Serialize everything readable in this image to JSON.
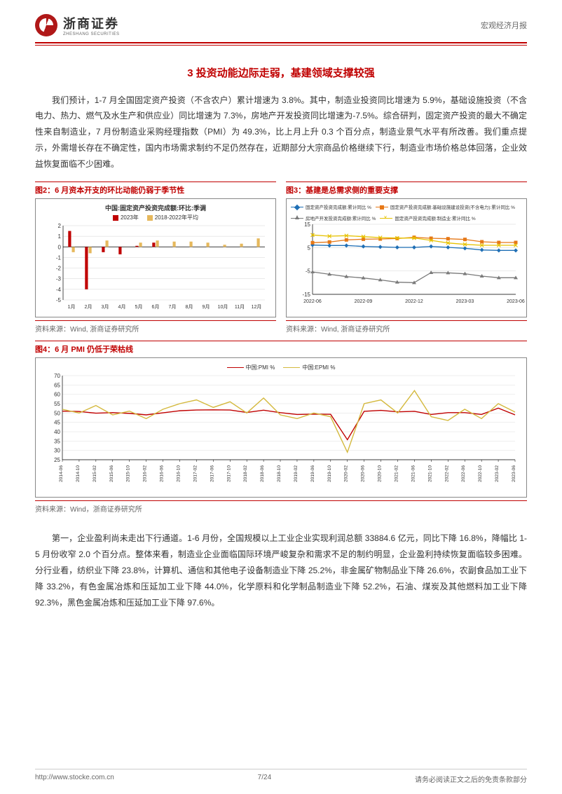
{
  "header": {
    "logo_cn": "浙商证券",
    "logo_en": "ZHESHANG SECURITIES",
    "doc_type": "宏观经济月报"
  },
  "section_title": "3 投资动能边际走弱，基建领域支撑较强",
  "para1": "我们预计，1-7 月全国固定资产投资（不含农户）累计增速为 3.8%。其中，制造业投资同比增速为 5.9%，基础设施投资（不含电力、热力、燃气及水生产和供应业）同比增速为 7.3%，房地产开发投资同比增速为-7.5%。综合研判，固定资产投资的最大不确定性来自制造业，7 月份制造业采购经理指数（PMI）为 49.3%，比上月上升 0.3 个百分点，制造业景气水平有所改善。我们重点提示，外需增长存在不确定性，国内市场需求制约不足仍然存在，近期部分大宗商品价格继续下行，制造业市场价格总体回落，企业效益恢复面临不少困难。",
  "fig2": {
    "title": "图2：6 月资本开支的环比动能仍弱于季节性",
    "inner_title": "中国:固定资产投资完成额:环比:季调",
    "source": "资料来源：Wind, 浙商证券研究所",
    "type": "bar",
    "categories": [
      "1月",
      "2月",
      "3月",
      "4月",
      "5月",
      "6月",
      "7月",
      "8月",
      "9月",
      "10月",
      "11月",
      "12月"
    ],
    "series": [
      {
        "name": "2023年",
        "color": "#c00000",
        "values": [
          1.5,
          -4.0,
          -0.5,
          -0.7,
          0.1,
          0.4,
          null,
          null,
          null,
          null,
          null,
          null
        ]
      },
      {
        "name": "2018-2022年平均",
        "color": "#e6b85c",
        "values": [
          -0.5,
          -0.6,
          0.6,
          0.0,
          0.4,
          0.6,
          0.5,
          0.5,
          0.4,
          0.2,
          0.3,
          0.8
        ]
      }
    ],
    "ylim": [
      -5,
      2
    ],
    "ytick_step": 1,
    "bar_width": 0.35,
    "grid_color": "#999999"
  },
  "fig3": {
    "title": "图3：基建是总需求侧的重要支撑",
    "source": "资料来源：Wind, 浙商证券研究所",
    "type": "line",
    "x_labels": [
      "2022-06",
      "2022-09",
      "2022-12",
      "2023-03",
      "2023-06"
    ],
    "series": [
      {
        "name": "固定资产投资完成额:累计同比 %",
        "color": "#1f6fb5",
        "marker": "diamond",
        "values": [
          6.1,
          5.9,
          5.9,
          5.5,
          5.3,
          5.1,
          5.1,
          5.5,
          5.1,
          4.7,
          4.0,
          3.8,
          3.8
        ]
      },
      {
        "name": "固定资产投资完成额:基础设施建设投资(不含电力):累计同比 %",
        "color": "#e67817",
        "marker": "square",
        "values": [
          7.1,
          7.4,
          8.3,
          8.6,
          8.7,
          8.9,
          9.4,
          9.0,
          8.8,
          8.5,
          7.5,
          7.2,
          7.2
        ]
      },
      {
        "name": "房地产开发投资完成额:累计同比 %",
        "color": "#7a7a7a",
        "marker": "triangle",
        "values": [
          -5.4,
          -6.4,
          -7.4,
          -8.0,
          -8.8,
          -9.8,
          -10.0,
          -5.7,
          -5.8,
          -6.2,
          -7.2,
          -7.9,
          -7.9
        ]
      },
      {
        "name": "固定资产投资完成额:制造业:累计同比 %",
        "color": "#e6c200",
        "marker": "x",
        "values": [
          10.4,
          9.9,
          10.1,
          9.7,
          9.3,
          9.1,
          9.1,
          8.1,
          7.0,
          6.4,
          6.0,
          6.0,
          6.0
        ]
      }
    ],
    "ylim": [
      -15,
      15
    ],
    "yticks": [
      -15,
      -5,
      5,
      15
    ]
  },
  "fig4": {
    "title": "图4：6 月 PMI 仍低于荣枯线",
    "source": "资料来源：Wind，浙商证券研究所",
    "type": "line",
    "x_labels": [
      "2014-06",
      "2014-10",
      "2015-02",
      "2015-06",
      "2015-10",
      "2016-02",
      "2016-06",
      "2016-10",
      "2017-02",
      "2017-06",
      "2017-10",
      "2018-02",
      "2018-06",
      "2018-10",
      "2019-02",
      "2019-06",
      "2019-10",
      "2020-02",
      "2020-06",
      "2020-10",
      "2021-02",
      "2021-06",
      "2021-10",
      "2022-02",
      "2022-06",
      "2022-10",
      "2023-02",
      "2023-06"
    ],
    "series": [
      {
        "name": "中国:PMI %",
        "color": "#c00000",
        "marker": "none",
        "values": [
          51,
          50.8,
          49.9,
          50.2,
          49.8,
          49,
          50.1,
          51.2,
          51.6,
          51.7,
          51.6,
          50.3,
          51.5,
          50.2,
          49.2,
          49.4,
          49.3,
          35.7,
          50.9,
          51.4,
          50.6,
          50.9,
          49.2,
          50.2,
          50.2,
          49.2,
          52.6,
          49
        ]
      },
      {
        "name": "中国:EPMI %",
        "color": "#d4b93e",
        "marker": "none",
        "values": [
          52,
          50,
          54,
          49,
          51,
          47,
          52,
          55,
          57,
          53,
          56,
          50,
          58,
          49,
          47,
          50,
          48,
          29,
          55,
          57,
          50,
          62,
          48,
          46,
          52,
          47,
          55,
          50.5
        ]
      }
    ],
    "ylim": [
      25,
      70
    ],
    "yticks": [
      25,
      30,
      35,
      40,
      45,
      50,
      55,
      60,
      65,
      70
    ]
  },
  "para2": "第一，企业盈利尚未走出下行通道。1-6 月份，全国规模以上工业企业实现利润总额 33884.6 亿元，同比下降 16.8%，降幅比 1-5 月份收窄 2.0 个百分点。整体来看，制造业企业面临国际环境严峻复杂和需求不足的制约明显，企业盈利持续恢复面临较多困难。分行业看，纺织业下降 23.8%，计算机、通信和其他电子设备制造业下降 25.2%，非金属矿物制品业下降 26.6%，农副食品加工业下降 33.2%，有色金属冶炼和压延加工业下降 44.0%，化学原料和化学制品制造业下降 52.2%，石油、煤炭及其他燃料加工业下降 92.3%，黑色金属冶炼和压延加工业下降 97.6%。",
  "footer": {
    "url": "http://www.stocke.com.cn",
    "page": "7/24",
    "disclaimer": "请务必阅读正文之后的免责条款部分"
  }
}
